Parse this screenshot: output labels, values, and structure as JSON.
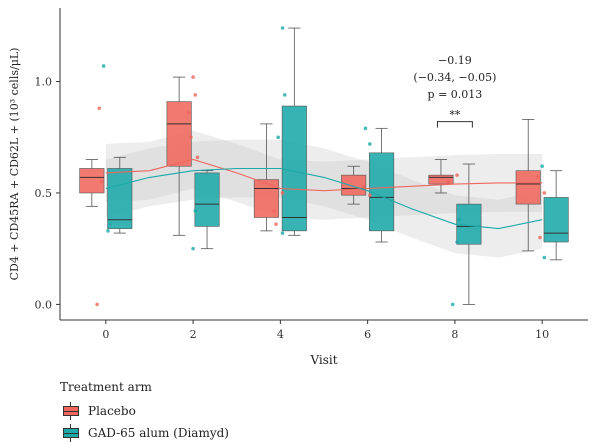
{
  "chart_data": {
    "type": "box",
    "xlabel": "Visit",
    "ylabel": "CD4 + CD45RA + CD62L + (10³ cells/μL)",
    "categories": [
      0,
      2,
      4,
      6,
      8,
      10
    ],
    "ylim": [
      -0.07,
      1.33
    ],
    "yticks": [
      0.0,
      0.5,
      1.0
    ],
    "ytick_labels": [
      "0.0",
      "0.5",
      "1.0"
    ],
    "xtick_labels": [
      "0",
      "2",
      "4",
      "6",
      "8",
      "10"
    ],
    "grid": true,
    "legend": {
      "title": "Treatment arm",
      "placement": "bottom-left"
    },
    "series": [
      {
        "name": "Placebo",
        "color": "#F0665C",
        "boxes": [
          {
            "x": 0,
            "min": 0.44,
            "q1": 0.5,
            "median": 0.57,
            "q3": 0.61,
            "max": 0.65
          },
          {
            "x": 2,
            "min": 0.31,
            "q1": 0.62,
            "median": 0.81,
            "q3": 0.91,
            "max": 1.02
          },
          {
            "x": 4,
            "min": 0.33,
            "q1": 0.39,
            "median": 0.52,
            "q3": 0.56,
            "max": 0.81
          },
          {
            "x": 6,
            "min": 0.45,
            "q1": 0.49,
            "median": 0.52,
            "q3": 0.58,
            "max": 0.62
          },
          {
            "x": 8,
            "min": 0.5,
            "q1": 0.54,
            "median": 0.57,
            "q3": 0.58,
            "max": 0.65
          },
          {
            "x": 10,
            "min": 0.24,
            "q1": 0.45,
            "median": 0.54,
            "q3": 0.6,
            "max": 0.83
          }
        ],
        "trend": [
          [
            0,
            0.59
          ],
          [
            1,
            0.6
          ],
          [
            2,
            0.65
          ],
          [
            3,
            0.59
          ],
          [
            4,
            0.52
          ],
          [
            5,
            0.51
          ],
          [
            6,
            0.52
          ],
          [
            7,
            0.53
          ],
          [
            8,
            0.54
          ],
          [
            9,
            0.545
          ],
          [
            10,
            0.545
          ]
        ],
        "points": [
          [
            -0.2,
            0.0
          ],
          [
            -0.15,
            0.88
          ],
          [
            -0.1,
            0.55
          ],
          [
            1.9,
            0.86
          ],
          [
            2.05,
            0.94
          ],
          [
            2.0,
            1.02
          ],
          [
            1.95,
            0.75
          ],
          [
            2.1,
            0.66
          ],
          [
            3.85,
            0.42
          ],
          [
            3.9,
            0.36
          ],
          [
            4.05,
            0.5
          ],
          [
            5.9,
            0.53
          ],
          [
            6.05,
            0.49
          ],
          [
            7.85,
            0.55
          ],
          [
            8.05,
            0.58
          ],
          [
            9.9,
            0.57
          ],
          [
            10.05,
            0.5
          ],
          [
            9.95,
            0.3
          ]
        ]
      },
      {
        "name": "GAD-65 alum (Diamyd)",
        "color": "#1BA9A9",
        "boxes": [
          {
            "x": 0,
            "min": 0.32,
            "q1": 0.34,
            "median": 0.38,
            "q3": 0.61,
            "max": 0.66
          },
          {
            "x": 2,
            "min": 0.25,
            "q1": 0.35,
            "median": 0.45,
            "q3": 0.59,
            "max": 0.6
          },
          {
            "x": 4,
            "min": 0.31,
            "q1": 0.33,
            "median": 0.39,
            "q3": 0.89,
            "max": 1.24
          },
          {
            "x": 6,
            "min": 0.28,
            "q1": 0.33,
            "median": 0.48,
            "q3": 0.68,
            "max": 0.79
          },
          {
            "x": 8,
            "min": 0.0,
            "q1": 0.27,
            "median": 0.35,
            "q3": 0.45,
            "max": 0.63
          },
          {
            "x": 10,
            "min": 0.2,
            "q1": 0.28,
            "median": 0.32,
            "q3": 0.48,
            "max": 0.6
          }
        ],
        "trend": [
          [
            0,
            0.52
          ],
          [
            1,
            0.57
          ],
          [
            2,
            0.6
          ],
          [
            3,
            0.61
          ],
          [
            4,
            0.61
          ],
          [
            5,
            0.57
          ],
          [
            6,
            0.51
          ],
          [
            7,
            0.43
          ],
          [
            8,
            0.36
          ],
          [
            9,
            0.34
          ],
          [
            10,
            0.38
          ]
        ],
        "points": [
          [
            -0.05,
            1.07
          ],
          [
            0.05,
            0.33
          ],
          [
            0.1,
            0.36
          ],
          [
            2.0,
            0.25
          ],
          [
            2.05,
            0.42
          ],
          [
            4.05,
            1.24
          ],
          [
            4.1,
            0.94
          ],
          [
            3.95,
            0.75
          ],
          [
            4.05,
            0.32
          ],
          [
            5.95,
            0.79
          ],
          [
            6.05,
            0.72
          ],
          [
            7.95,
            0.0
          ],
          [
            8.05,
            0.28
          ],
          [
            8.1,
            0.38
          ],
          [
            10.0,
            0.62
          ],
          [
            10.05,
            0.21
          ]
        ]
      }
    ],
    "annotation": {
      "lines": [
        "−0.19",
        "(−0.34, −0.05)",
        "p = 0.013"
      ],
      "significance": "**",
      "bracket_from_x": 7.6,
      "bracket_to_x": 8.4,
      "bracket_y": 0.82
    }
  }
}
